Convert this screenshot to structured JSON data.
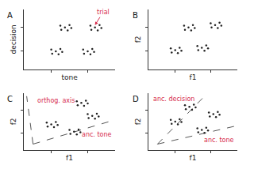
{
  "chart_data": [
    {
      "type": "scatter",
      "title": "A",
      "xlabel": "tone",
      "ylabel": "decision",
      "xlim": [
        0,
        10
      ],
      "ylim": [
        0,
        10
      ],
      "xticks": [
        3,
        7
      ],
      "yticks": [
        3,
        7
      ],
      "tick_labels": false,
      "grid": false,
      "series": [
        {
          "type": "scatter",
          "marker": "circle",
          "color": "#222222",
          "x": [
            3.5,
            4.0,
            3.0,
            3.8,
            3.1,
            4.2,
            4.5,
            5.0,
            4.0,
            4.8,
            4.1,
            5.2,
            7.0,
            7.5,
            6.5,
            7.3,
            6.6,
            7.7,
            7.8,
            8.3,
            7.3,
            8.1,
            7.4,
            8.5
          ],
          "y": [
            3.0,
            3.4,
            3.3,
            2.5,
            2.6,
            2.9,
            7.0,
            7.4,
            7.3,
            6.5,
            6.6,
            6.9,
            3.0,
            3.4,
            3.3,
            2.5,
            2.6,
            2.9,
            7.0,
            7.4,
            7.3,
            6.5,
            6.6,
            6.9
          ]
        }
      ],
      "annotations": [
        {
          "text": "trial",
          "x": 7.8,
          "y": 7.4,
          "color": "#d62b4b",
          "arrow": true
        }
      ]
    },
    {
      "type": "scatter",
      "title": "B",
      "xlabel": "f1",
      "ylabel": "f2",
      "xlim": [
        0,
        10
      ],
      "ylim": [
        0,
        10
      ],
      "xticks": [
        3,
        7
      ],
      "yticks": [
        3,
        7
      ],
      "tick_labels": false,
      "grid": false,
      "series": [
        {
          "type": "scatter",
          "marker": "circle",
          "color": "#222222",
          "x": [
            3.0,
            3.5,
            2.5,
            3.3,
            2.6,
            3.7,
            4.5,
            5.0,
            4.0,
            4.8,
            4.1,
            5.2,
            6.0,
            6.5,
            5.5,
            6.3,
            5.6,
            6.7,
            7.5,
            8.0,
            7.0,
            7.8,
            7.1,
            8.2
          ],
          "y": [
            3.2,
            3.6,
            3.5,
            2.7,
            2.8,
            3.1,
            7.0,
            7.4,
            7.3,
            6.5,
            6.6,
            6.9,
            3.6,
            4.0,
            3.9,
            3.1,
            3.2,
            3.5,
            7.4,
            7.8,
            7.7,
            6.9,
            7.0,
            7.3
          ]
        }
      ],
      "annotations": []
    },
    {
      "type": "scatter",
      "title": "C",
      "xlabel": "f1",
      "ylabel": "f2",
      "xlim": [
        0,
        10
      ],
      "ylim": [
        0,
        10
      ],
      "xticks": [
        3,
        7
      ],
      "yticks": [
        3,
        7
      ],
      "tick_labels": false,
      "grid": false,
      "series": [
        {
          "type": "line",
          "line_style": "dash",
          "color": "#555555",
          "x": [
            1,
            9.8
          ],
          "y": [
            1,
            5.2
          ]
        },
        {
          "type": "line",
          "line_style": "dash",
          "color": "#555555",
          "x": [
            1,
            0.3
          ],
          "y": [
            1,
            9.5
          ]
        },
        {
          "type": "scatter",
          "marker": "circle",
          "color": "#222222",
          "x": [
            3.0,
            3.5,
            2.5,
            3.3,
            2.6,
            3.7,
            6.3,
            6.8,
            5.8,
            6.6,
            5.9,
            7.0,
            5.5,
            6.0,
            5.0,
            5.8,
            5.1,
            6.2,
            7.5,
            8.0,
            7.0,
            7.8,
            7.1,
            8.2
          ],
          "y": [
            4.5,
            4.9,
            4.8,
            4.0,
            4.1,
            4.4,
            8.3,
            8.7,
            8.6,
            7.8,
            7.9,
            8.2,
            3.2,
            3.6,
            3.5,
            2.7,
            2.8,
            3.1,
            6.0,
            6.4,
            6.3,
            5.5,
            5.6,
            5.9
          ]
        }
      ],
      "annotations": [
        {
          "text": "anc. tone",
          "x": 9.8,
          "y": 3.6,
          "color": "#d62b4b",
          "arrow": false
        },
        {
          "text": "orthog. axis",
          "x": 1.3,
          "y": 9.6,
          "color": "#d62b4b",
          "arrow": false
        }
      ]
    },
    {
      "type": "scatter",
      "title": "D",
      "xlabel": "f1",
      "ylabel": "f2",
      "xlim": [
        0,
        10
      ],
      "ylim": [
        0,
        10
      ],
      "xticks": [
        3,
        7
      ],
      "yticks": [
        3,
        7
      ],
      "tick_labels": false,
      "grid": false,
      "series": [
        {
          "type": "line",
          "line_style": "dash",
          "color": "#555555",
          "x": [
            1,
            9.8
          ],
          "y": [
            1,
            4.2
          ]
        },
        {
          "type": "line",
          "line_style": "dash",
          "color": "#555555",
          "x": [
            1,
            6.5
          ],
          "y": [
            1,
            9.8
          ]
        },
        {
          "type": "scatter",
          "marker": "circle",
          "color": "#222222",
          "x": [
            3.0,
            3.5,
            2.5,
            3.3,
            2.6,
            3.7,
            4.6,
            5.1,
            4.1,
            4.9,
            4.2,
            5.3,
            6.0,
            6.5,
            5.5,
            6.3,
            5.6,
            6.7,
            7.3,
            7.8,
            6.8,
            7.6,
            6.9,
            8.0
          ],
          "y": [
            5.0,
            5.4,
            5.3,
            4.5,
            4.6,
            4.9,
            7.6,
            8.0,
            7.9,
            7.1,
            7.2,
            7.5,
            3.5,
            3.9,
            3.8,
            3.0,
            3.1,
            3.4,
            6.3,
            6.7,
            6.6,
            5.8,
            5.9,
            6.2
          ]
        }
      ],
      "annotations": [
        {
          "text": "anc. tone",
          "x": 9.8,
          "y": 2.6,
          "color": "#d62b4b",
          "arrow": false
        },
        {
          "text": "anc. decision",
          "x": 0.3,
          "y": 9.9,
          "color": "#d62b4b",
          "arrow": false
        }
      ]
    }
  ]
}
